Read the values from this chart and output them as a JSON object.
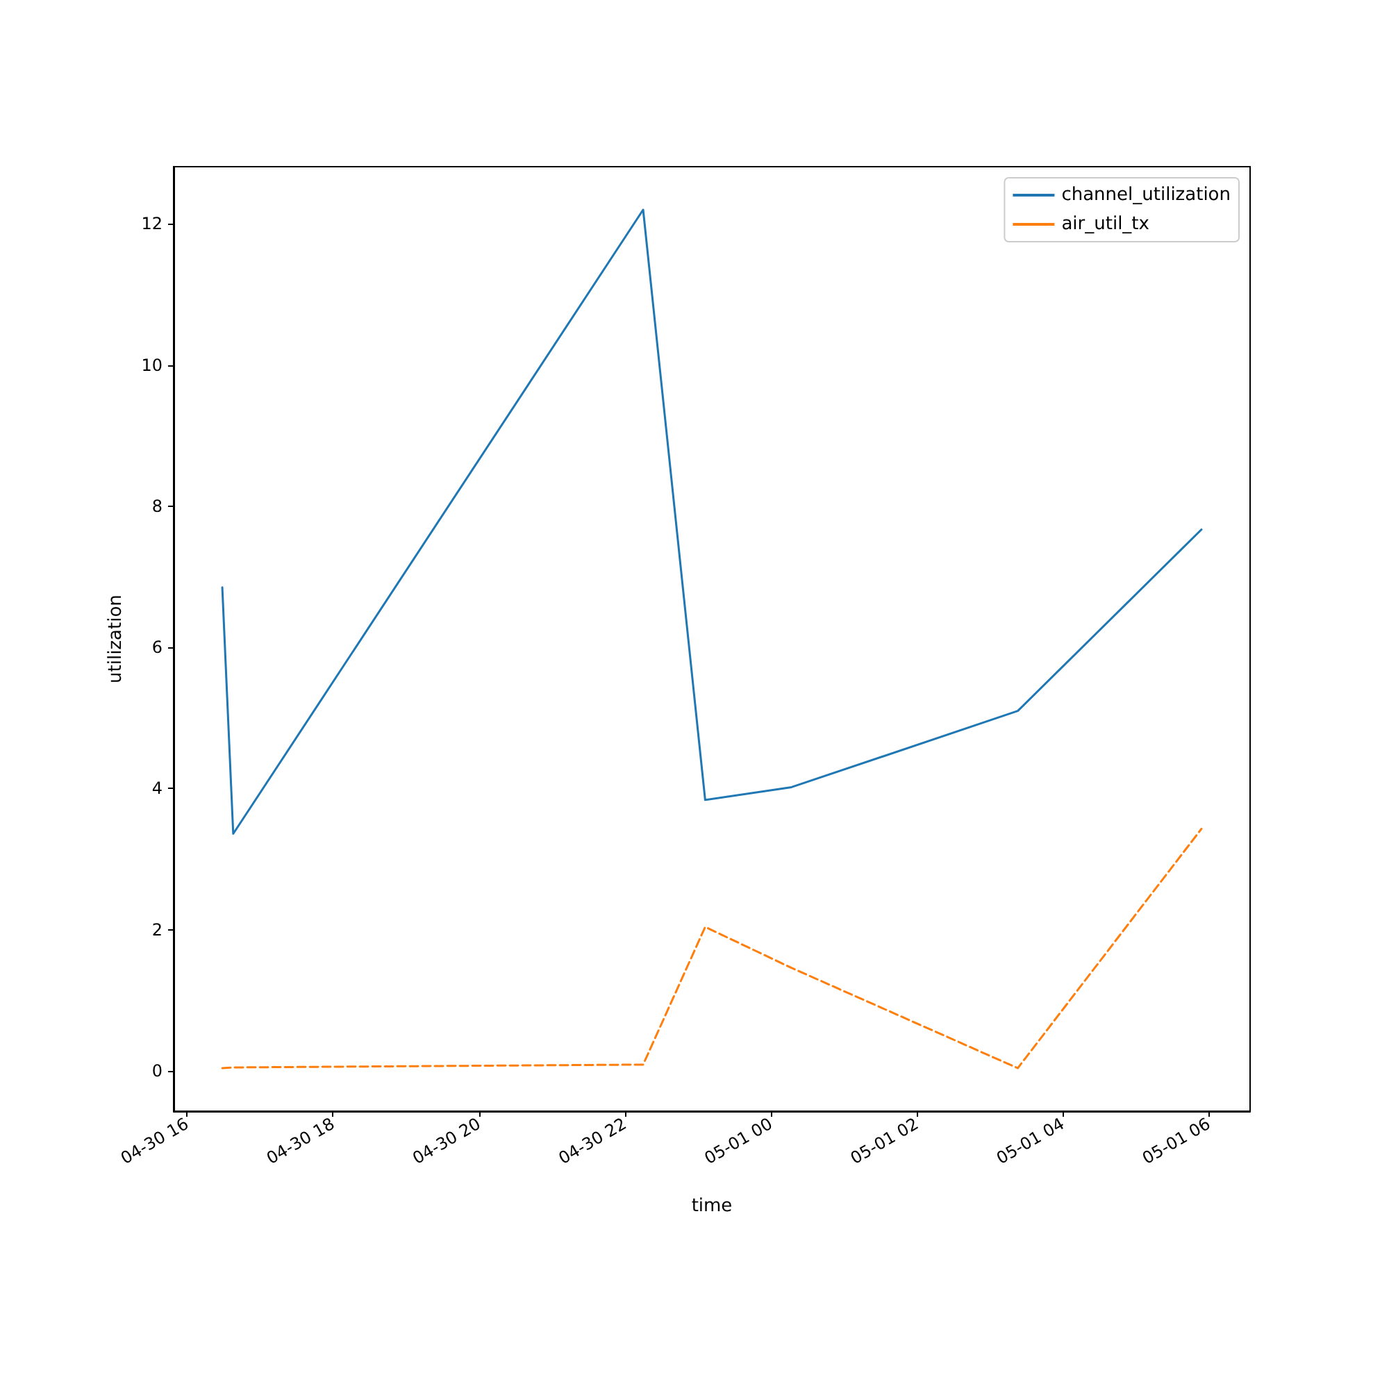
{
  "chart_data": {
    "type": "line",
    "xlabel": "time",
    "ylabel": "utilization",
    "x": [
      "--04-30T16:29",
      "--04-30T16:38",
      "--04-30T22:15",
      "--04-30T23:06",
      "--05-01T00:17",
      "--05-01T03:23",
      "--05-01T05:54"
    ],
    "series": [
      {
        "name": "channel_utilization",
        "color": "#1f77b4",
        "line_style": "solid",
        "values": [
          6.85,
          3.36,
          12.2,
          3.84,
          4.02,
          5.1,
          7.67
        ]
      },
      {
        "name": "air_util_tx",
        "color": "#ff7f0e",
        "line_style": "dashed",
        "values": [
          0.04,
          0.05,
          0.09,
          2.04,
          1.46,
          0.04,
          3.43
        ]
      }
    ],
    "xlim": [
      "--04-30T15:49",
      "--05-01T06:34"
    ],
    "xticks": [
      {
        "value": "--04-30T16:00",
        "label": "04-30 16"
      },
      {
        "value": "--04-30T18:00",
        "label": "04-30 18"
      },
      {
        "value": "--04-30T20:00",
        "label": "04-30 20"
      },
      {
        "value": "--04-30T22:00",
        "label": "04-30 22"
      },
      {
        "value": "--05-01T00:00",
        "label": "05-01 00"
      },
      {
        "value": "--05-01T02:00",
        "label": "05-01 02"
      },
      {
        "value": "--05-01T04:00",
        "label": "05-01 04"
      },
      {
        "value": "--05-01T06:00",
        "label": "05-01 06"
      }
    ],
    "ylim": [
      -0.57,
      12.81
    ],
    "yticks": [
      0,
      2,
      4,
      6,
      8,
      10,
      12
    ],
    "legend": "top right",
    "marker": "none",
    "grid": false
  }
}
